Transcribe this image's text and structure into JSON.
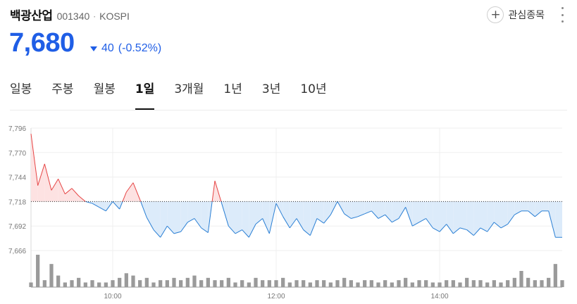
{
  "stock": {
    "name": "백광산업",
    "code": "001340",
    "market": "KOSPI"
  },
  "favorite_label": "관심종목",
  "price": {
    "value": "7,680",
    "change": "40",
    "change_pct": "(-0.52%)",
    "color": "#1f5ee6"
  },
  "tabs": [
    {
      "label": "일봉"
    },
    {
      "label": "주봉"
    },
    {
      "label": "월봉"
    },
    {
      "label": "1일"
    },
    {
      "label": "3개월"
    },
    {
      "label": "1년"
    },
    {
      "label": "3년"
    },
    {
      "label": "10년"
    }
  ],
  "active_tab": "1일",
  "chart_data": {
    "type": "line",
    "y_ticks": [
      "7,796",
      "7,770",
      "7,744",
      "7,718",
      "7,692",
      "7,666"
    ],
    "ylim": [
      7666,
      7796
    ],
    "x_ticks": [
      "10:00",
      "12:00",
      "14:00"
    ],
    "reference_value": 7718,
    "up_color": "#e64545",
    "down_color": "#2a7fd4",
    "series": [
      {
        "x": [
          "09:00",
          "09:05",
          "09:10",
          "09:15",
          "09:20",
          "09:25",
          "09:30",
          "09:35",
          "09:40",
          "09:45",
          "09:50",
          "09:55",
          "10:00",
          "10:05",
          "10:10",
          "10:15",
          "10:20",
          "10:25",
          "10:30",
          "10:35",
          "10:40",
          "10:45",
          "10:50",
          "10:55",
          "11:00",
          "11:05",
          "11:10",
          "11:15",
          "11:20",
          "11:25",
          "11:30",
          "11:35",
          "11:40",
          "11:45",
          "11:50",
          "11:55",
          "12:00",
          "12:05",
          "12:10",
          "12:15",
          "12:20",
          "12:25",
          "12:30",
          "12:35",
          "12:40",
          "12:45",
          "12:50",
          "12:55",
          "13:00",
          "13:05",
          "13:10",
          "13:15",
          "13:20",
          "13:25",
          "13:30",
          "13:35",
          "13:40",
          "13:45",
          "13:50",
          "13:55",
          "14:00",
          "14:05",
          "14:10",
          "14:15",
          "14:20",
          "14:25",
          "14:30",
          "14:35",
          "14:40",
          "14:45",
          "14:50",
          "14:55",
          "15:00",
          "15:05",
          "15:10",
          "15:15",
          "15:20",
          "15:25",
          "15:30"
        ],
        "values": [
          7790,
          7735,
          7758,
          7730,
          7742,
          7726,
          7732,
          7724,
          7718,
          7716,
          7712,
          7708,
          7718,
          7710,
          7728,
          7738,
          7720,
          7701,
          7688,
          7680,
          7692,
          7684,
          7686,
          7696,
          7700,
          7690,
          7685,
          7740,
          7716,
          7692,
          7684,
          7688,
          7680,
          7694,
          7700,
          7684,
          7716,
          7702,
          7690,
          7700,
          7688,
          7682,
          7700,
          7695,
          7704,
          7718,
          7705,
          7700,
          7702,
          7705,
          7708,
          7700,
          7704,
          7696,
          7700,
          7712,
          7692,
          7696,
          7700,
          7690,
          7686,
          7694,
          7684,
          7690,
          7688,
          7682,
          7690,
          7686,
          7696,
          7690,
          7694,
          7704,
          7708,
          7708,
          7702,
          7708,
          7708,
          7680,
          7680
        ]
      }
    ],
    "volume": [
      2,
      14,
      3,
      10,
      5,
      2,
      3,
      4,
      2,
      3,
      2,
      2,
      3,
      4,
      6,
      5,
      3,
      4,
      2,
      3,
      3,
      4,
      3,
      4,
      5,
      3,
      4,
      3,
      3,
      4,
      2,
      3,
      2,
      4,
      3,
      3,
      3,
      4,
      2,
      3,
      3,
      2,
      3,
      3,
      2,
      3,
      4,
      3,
      2,
      3,
      3,
      2,
      3,
      2,
      3,
      4,
      2,
      3,
      3,
      2,
      2,
      3,
      3,
      2,
      4,
      3,
      3,
      2,
      3,
      2,
      3,
      4,
      7,
      4,
      3,
      3,
      4,
      10,
      3
    ]
  }
}
